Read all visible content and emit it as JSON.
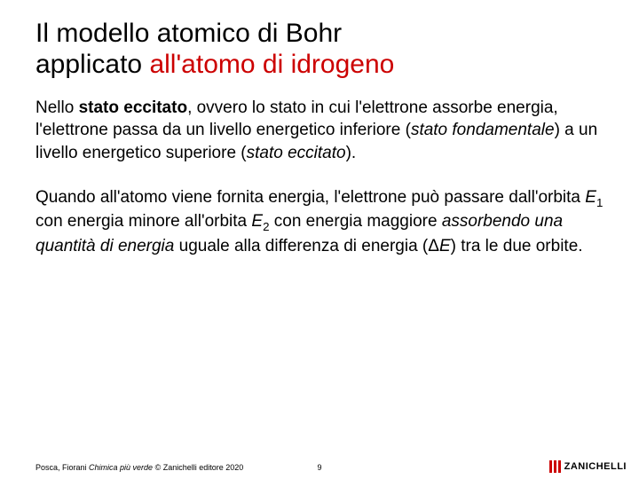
{
  "title": {
    "line1": "Il modello atomico di Bohr",
    "line2_black": "applicato ",
    "line2_red": "all'atomo di idrogeno"
  },
  "paragraphs": {
    "p1": {
      "t1": "Nello ",
      "b1": "stato eccitato",
      "t2": ", ovvero lo stato in cui l'elettrone assorbe energia, l'elettrone passa da un livello energetico inferiore (",
      "i1": "stato fondamentale",
      "t3": ") a un livello energetico superiore (",
      "i2": "stato eccitato",
      "t4": ")."
    },
    "p2": {
      "t1": "Quando all'atomo viene fornita energia, l'elettrone può passare dall'orbita ",
      "e1": "E",
      "s1": "1",
      "t2": " con energia minore all'orbita ",
      "e2": "E",
      "s2": "2",
      "t3": " con energia maggiore ",
      "i1": "assorbendo una quantità di energia",
      "t4": " uguale alla differenza di energia (Δ",
      "e3": "E",
      "t5": ") tra le due orbite."
    }
  },
  "footer": {
    "authors": "Posca, Fiorani ",
    "book": "Chimica più verde",
    "publisher": " © Zanichelli editore 2020",
    "pagenum": "9",
    "logo_text": "ZANICHELLI"
  },
  "colors": {
    "red": "#cc0000",
    "black": "#000000",
    "background": "#ffffff"
  },
  "typography": {
    "title_fontsize": 30,
    "body_fontsize": 19,
    "footer_fontsize": 9,
    "logo_fontsize": 11
  }
}
